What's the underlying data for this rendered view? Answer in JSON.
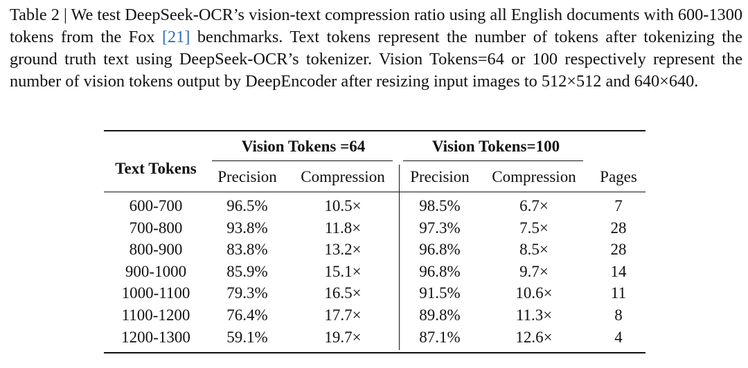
{
  "caption": {
    "before": "Table 2 | We test DeepSeek-OCR’s vision-text compression ratio using all English documents with 600-1300 tokens from the Fox ",
    "ref": "[21]",
    "after": " benchmarks. Text tokens represent the number of tokens after tokenizing the ground truth text using DeepSeek-OCR’s tokenizer. Vision Tokens=64 or 100 respectively represent the number of vision tokens output by DeepEncoder after resizing input images to 512×512 and 640×640."
  },
  "table": {
    "header": {
      "text_tokens": "Text Tokens",
      "groups": [
        "Vision Tokens =64",
        "Vision Tokens=100"
      ],
      "columns": [
        "Precision",
        "Compression",
        "Precision",
        "Compression",
        "Pages"
      ]
    },
    "rows": [
      [
        "600-700",
        "96.5%",
        "10.5×",
        "98.5%",
        "6.7×",
        "7"
      ],
      [
        "700-800",
        "93.8%",
        "11.8×",
        "97.3%",
        "7.5×",
        "28"
      ],
      [
        "800-900",
        "83.8%",
        "13.2×",
        "96.8%",
        "8.5×",
        "28"
      ],
      [
        "900-1000",
        "85.9%",
        "15.1×",
        "96.8%",
        "9.7×",
        "14"
      ],
      [
        "1000-1100",
        "79.3%",
        "16.5×",
        "91.5%",
        "10.6×",
        "11"
      ],
      [
        "1100-1200",
        "76.4%",
        "17.7×",
        "89.8%",
        "11.3×",
        "8"
      ],
      [
        "1200-1300",
        "59.1%",
        "19.7×",
        "87.1%",
        "12.6×",
        "4"
      ]
    ]
  }
}
